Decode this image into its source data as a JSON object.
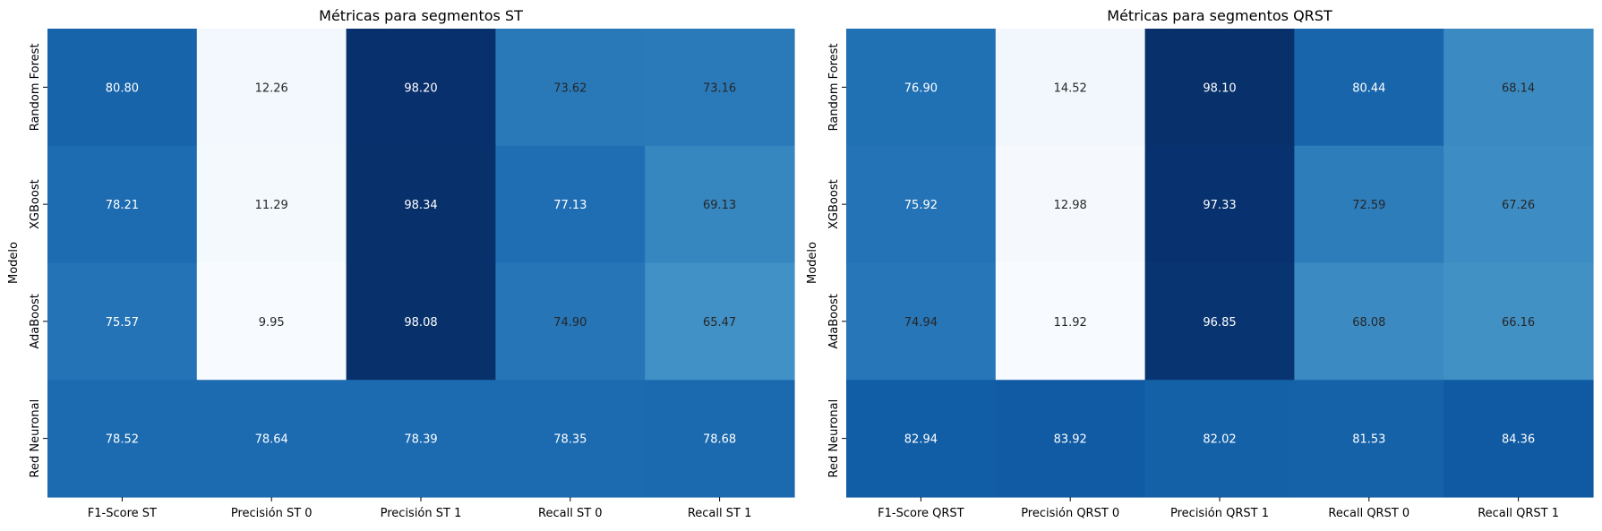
{
  "chart_data": [
    {
      "type": "heatmap",
      "title": "Métricas para segmentos ST",
      "ylabel": "Modelo",
      "xlabel": "",
      "colormap": "Blues",
      "x_categories": [
        "F1-Score ST",
        "Precisión ST 0",
        "Precisión ST 1",
        "Recall ST 0",
        "Recall ST 1"
      ],
      "y_categories": [
        "Random Forest",
        "XGBoost",
        "AdaBoost",
        "Red Neuronal"
      ],
      "values": [
        [
          80.8,
          12.26,
          98.2,
          73.62,
          73.16
        ],
        [
          78.21,
          11.29,
          98.34,
          77.13,
          69.13
        ],
        [
          75.57,
          9.95,
          98.08,
          74.9,
          65.47
        ],
        [
          78.52,
          78.64,
          78.39,
          78.35,
          78.68
        ]
      ],
      "labels": [
        [
          "80.80",
          "12.26",
          "98.20",
          "73.62",
          "73.16"
        ],
        [
          "78.21",
          "11.29",
          "98.34",
          "77.13",
          "69.13"
        ],
        [
          "75.57",
          "9.95",
          "98.08",
          "74.90",
          "65.47"
        ],
        [
          "78.52",
          "78.64",
          "78.39",
          "78.35",
          "78.68"
        ]
      ],
      "colorbar": false
    },
    {
      "type": "heatmap",
      "title": "Métricas para segmentos QRST",
      "ylabel": "Modelo",
      "xlabel": "",
      "colormap": "Blues",
      "x_categories": [
        "F1-Score QRST",
        "Precisión QRST 0",
        "Precisión QRST 1",
        "Recall QRST 0",
        "Recall QRST 1"
      ],
      "y_categories": [
        "Random Forest",
        "XGBoost",
        "AdaBoost",
        "Red Neuronal"
      ],
      "values": [
        [
          76.9,
          14.52,
          98.1,
          80.44,
          68.14
        ],
        [
          75.92,
          12.98,
          97.33,
          72.59,
          67.26
        ],
        [
          74.94,
          11.92,
          96.85,
          68.08,
          66.16
        ],
        [
          82.94,
          83.92,
          82.02,
          81.53,
          84.36
        ]
      ],
      "labels": [
        [
          "76.90",
          "14.52",
          "98.10",
          "80.44",
          "68.14"
        ],
        [
          "75.92",
          "12.98",
          "97.33",
          "72.59",
          "67.26"
        ],
        [
          "74.94",
          "11.92",
          "96.85",
          "68.08",
          "66.16"
        ],
        [
          "82.94",
          "83.92",
          "82.02",
          "81.53",
          "84.36"
        ]
      ],
      "colorbar": false
    }
  ]
}
